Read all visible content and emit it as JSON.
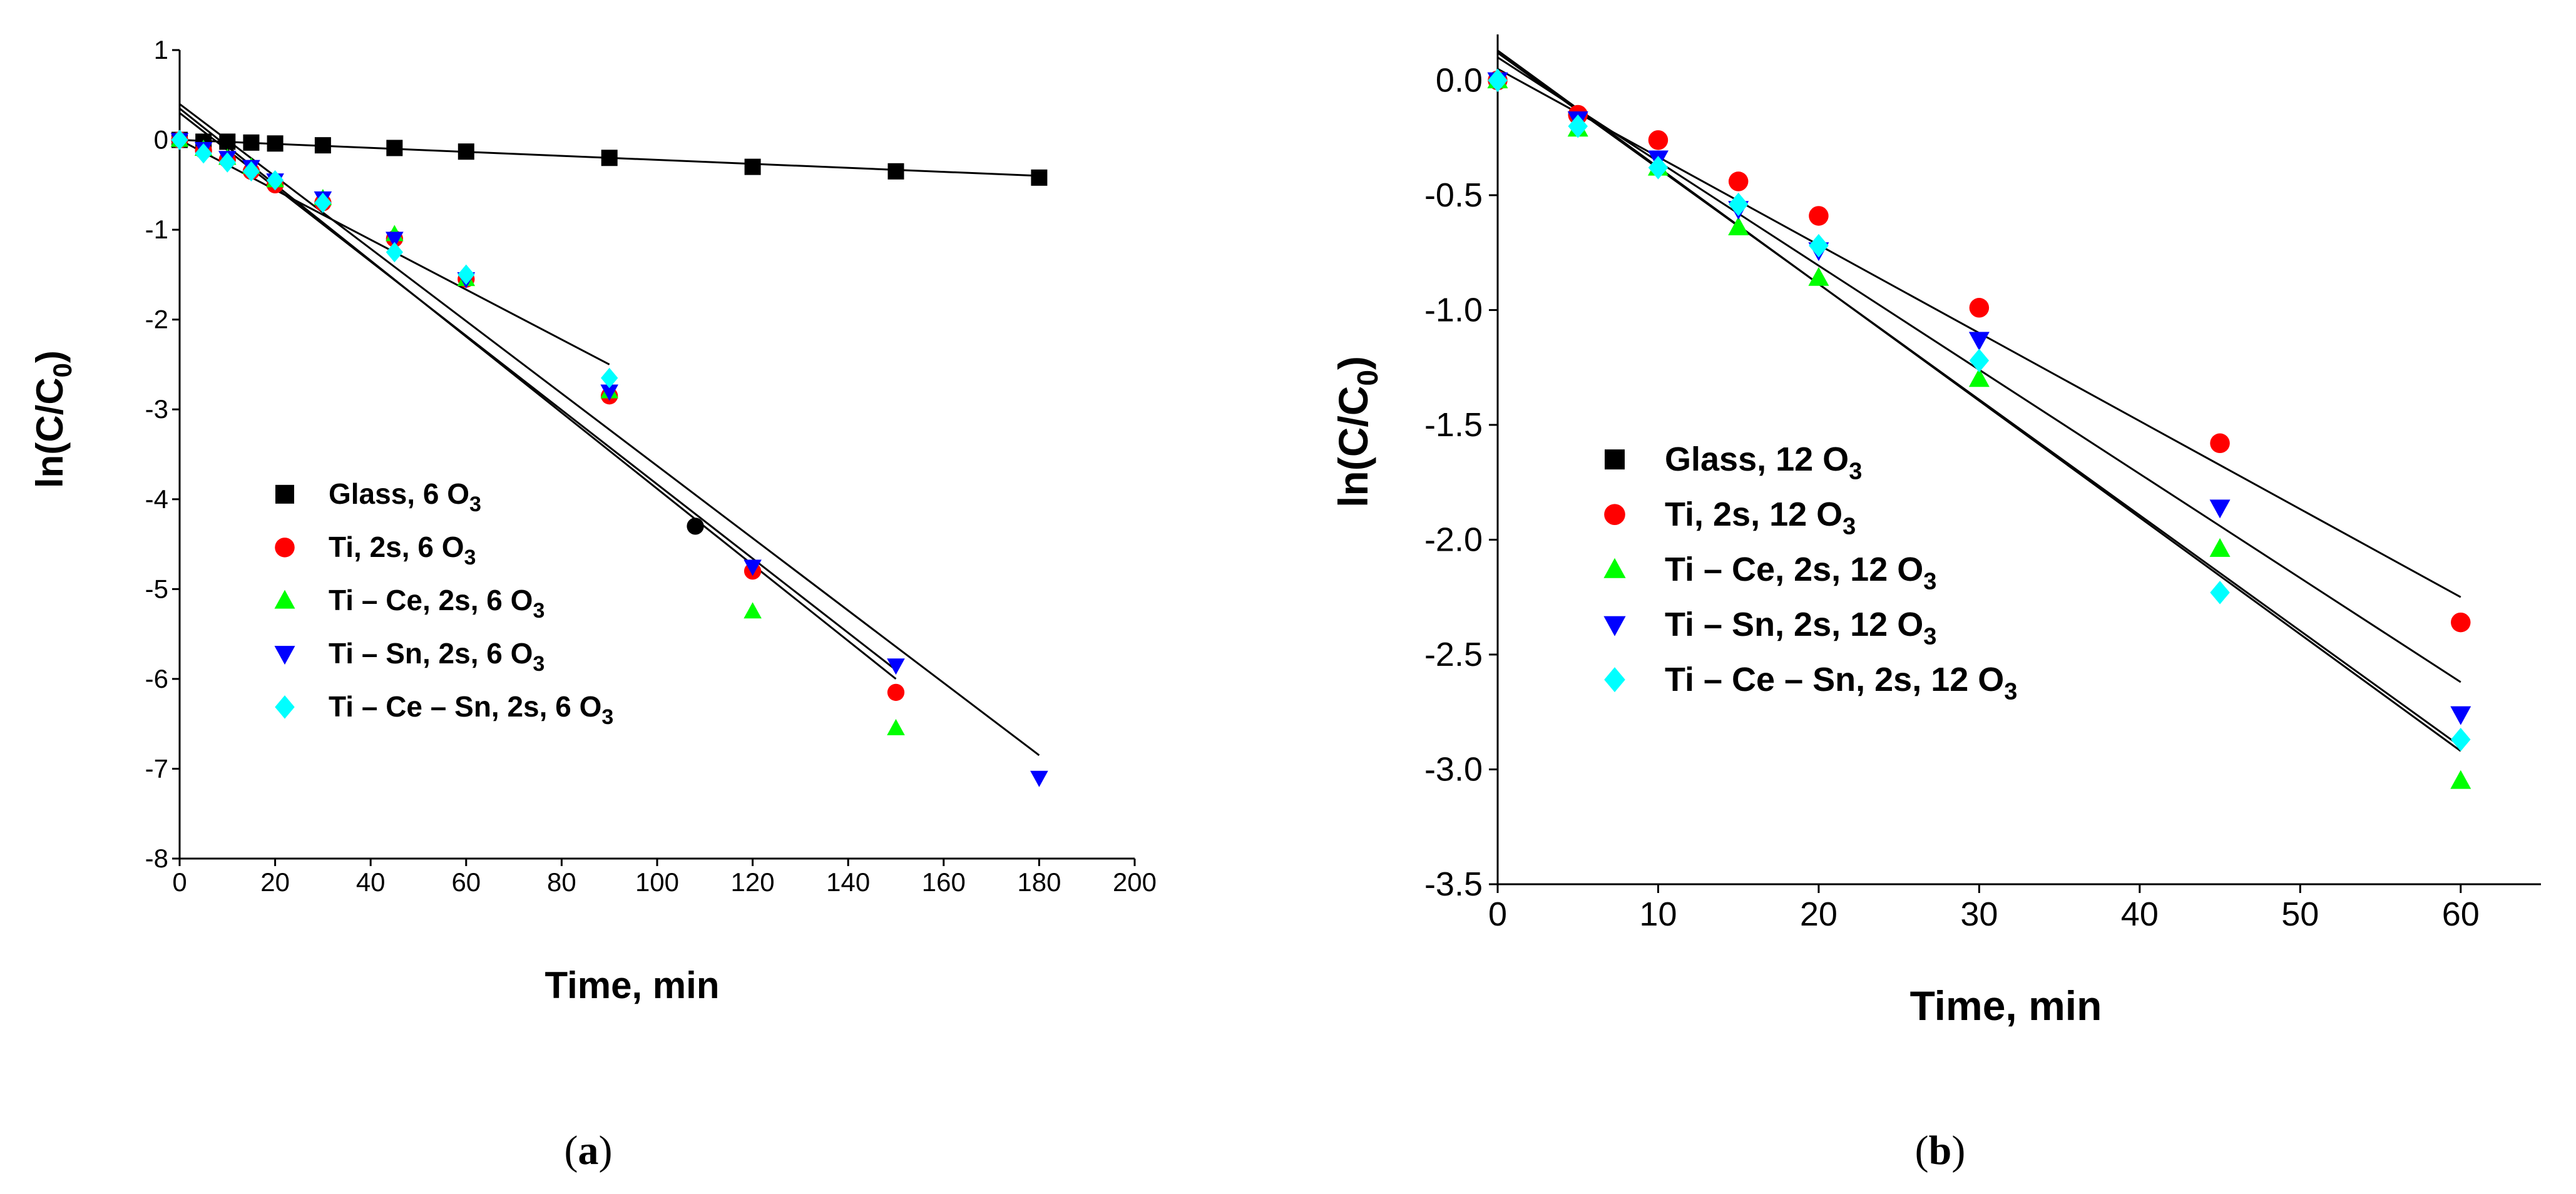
{
  "colors": {
    "glass": "#000000",
    "ti": "#ff0000",
    "ti_ce": "#00ff00",
    "ti_sn": "#0000ff",
    "ti_ce_sn": "#00ffff",
    "fit_line": "#000000"
  },
  "chart_data": [
    {
      "id": "a",
      "type": "scatter",
      "caption_letter": "a",
      "caption_open": "(",
      "caption_close": ")",
      "xlabel": "Time, min",
      "ylabel_main": "ln(C/C",
      "ylabel_sub": "0",
      "ylabel_close": ")",
      "xlim": [
        0,
        200
      ],
      "ylim": [
        -8,
        1
      ],
      "xticks": [
        0,
        20,
        40,
        60,
        80,
        100,
        120,
        140,
        160,
        180,
        200
      ],
      "yticks": [
        1,
        0,
        -1,
        -2,
        -3,
        -4,
        -5,
        -6,
        -7,
        -8
      ],
      "series": [
        {
          "name": "Glass, 6 O",
          "sub": "3",
          "color_key": "glass",
          "marker": "square",
          "x": [
            0,
            5,
            10,
            15,
            20,
            30,
            45,
            60,
            90,
            120,
            150,
            180
          ],
          "y": [
            0,
            -0.02,
            -0.02,
            -0.03,
            -0.04,
            -0.06,
            -0.09,
            -0.13,
            -0.2,
            -0.3,
            -0.35,
            -0.42
          ],
          "fit": [
            [
              0,
              0.0
            ],
            [
              180,
              -0.4
            ]
          ]
        },
        {
          "name": "Ti, 2s, 6 O",
          "sub": "3",
          "color_key": "ti",
          "marker": "circle",
          "x": [
            0,
            5,
            10,
            15,
            20,
            30,
            45,
            60,
            90,
            120,
            150
          ],
          "y": [
            0,
            -0.12,
            -0.22,
            -0.35,
            -0.5,
            -0.7,
            -1.1,
            -1.55,
            -2.85,
            -4.8,
            -6.15
          ],
          "fit": [
            [
              0,
              0.35
            ],
            [
              150,
              -6.0
            ]
          ]
        },
        {
          "name": "Ti – Ce, 2s, 6 O",
          "sub": "3",
          "color_key": "ti_ce",
          "marker": "triangle-up",
          "x": [
            0,
            5,
            10,
            15,
            20,
            30,
            45,
            60,
            90,
            120,
            150
          ],
          "y": [
            0,
            -0.1,
            -0.2,
            -0.3,
            -0.45,
            -0.65,
            -1.05,
            -1.55,
            -2.8,
            -5.25,
            -6.55
          ],
          "fit": [
            [
              0,
              0.3
            ],
            [
              150,
              -5.9
            ]
          ]
        },
        {
          "name": "Ti –  Sn, 2s, 6 O",
          "sub": "3",
          "color_key": "ti_sn",
          "marker": "triangle-down",
          "x": [
            0,
            5,
            10,
            15,
            20,
            30,
            45,
            60,
            90,
            120,
            150,
            180
          ],
          "y": [
            0,
            -0.1,
            -0.2,
            -0.3,
            -0.45,
            -0.65,
            -1.1,
            -1.55,
            -2.8,
            -4.75,
            -5.85,
            -7.1
          ],
          "fit": [
            [
              0,
              0.4
            ],
            [
              180,
              -6.85
            ]
          ]
        },
        {
          "name": "Ti – Ce – Sn, 2s, 6 O",
          "sub": "3",
          "color_key": "ti_ce_sn",
          "marker": "diamond",
          "x": [
            0,
            5,
            10,
            15,
            20,
            30,
            45,
            60,
            90
          ],
          "y": [
            0,
            -0.15,
            -0.25,
            -0.35,
            -0.45,
            -0.7,
            -1.25,
            -1.5,
            -2.65
          ],
          "fit": [
            [
              0,
              0.0
            ],
            [
              90,
              -2.5
            ]
          ]
        }
      ],
      "extra_points": [
        {
          "x": 108,
          "y": -4.3,
          "color_key": "glass",
          "marker": "circle"
        }
      ]
    },
    {
      "id": "b",
      "type": "scatter",
      "caption_letter": "b",
      "caption_open": "(",
      "caption_close": ")",
      "xlabel": "Time, min",
      "ylabel_main": "ln(C/C",
      "ylabel_sub": "0",
      "ylabel_close": ")",
      "xlim": [
        0,
        65
      ],
      "ylim": [
        -3.5,
        0.2
      ],
      "xticks": [
        0,
        10,
        20,
        30,
        40,
        50,
        60
      ],
      "yticks": [
        "0.0",
        "-0.5",
        "-1.0",
        "-1.5",
        "-2.0",
        "-2.5",
        "-3.0",
        "-3.5"
      ],
      "series": [
        {
          "name": "Glass, 12 O",
          "sub": "3",
          "color_key": "glass",
          "marker": "square",
          "x": [],
          "y": [],
          "fit": []
        },
        {
          "name": "Ti, 2s, 12 O",
          "sub": "3",
          "color_key": "ti",
          "marker": "circle",
          "x": [
            0,
            5,
            10,
            15,
            20,
            30,
            45,
            60
          ],
          "y": [
            0,
            -0.15,
            -0.26,
            -0.44,
            -0.59,
            -0.99,
            -1.58,
            -2.36
          ],
          "fit": [
            [
              0,
              0.05
            ],
            [
              60,
              -2.25
            ]
          ]
        },
        {
          "name": "Ti – Ce, 2s, 12 O",
          "sub": "3",
          "color_key": "ti_ce",
          "marker": "triangle-up",
          "x": [
            0,
            5,
            10,
            15,
            20,
            30,
            45,
            60
          ],
          "y": [
            0,
            -0.21,
            -0.38,
            -0.64,
            -0.86,
            -1.3,
            -2.04,
            -3.05
          ],
          "fit": [
            [
              0,
              0.12
            ],
            [
              60,
              -2.9
            ]
          ]
        },
        {
          "name": "Ti – Sn, 2s, 12 O",
          "sub": "3",
          "color_key": "ti_sn",
          "marker": "triangle-down",
          "x": [
            0,
            5,
            10,
            15,
            20,
            30,
            45,
            60
          ],
          "y": [
            0,
            -0.17,
            -0.34,
            -0.56,
            -0.74,
            -1.13,
            -1.86,
            -2.76
          ],
          "fit": [
            [
              0,
              0.1
            ],
            [
              60,
              -2.62
            ]
          ]
        },
        {
          "name": "Ti – Ce – Sn, 2s, 12 O",
          "sub": "3",
          "color_key": "ti_ce_sn",
          "marker": "diamond",
          "x": [
            0,
            5,
            10,
            15,
            20,
            30,
            45,
            60
          ],
          "y": [
            0,
            -0.2,
            -0.38,
            -0.54,
            -0.72,
            -1.22,
            -2.23,
            -2.87
          ],
          "fit": [
            [
              0,
              0.13
            ],
            [
              60,
              -2.92
            ]
          ]
        }
      ],
      "extra_points": []
    }
  ]
}
